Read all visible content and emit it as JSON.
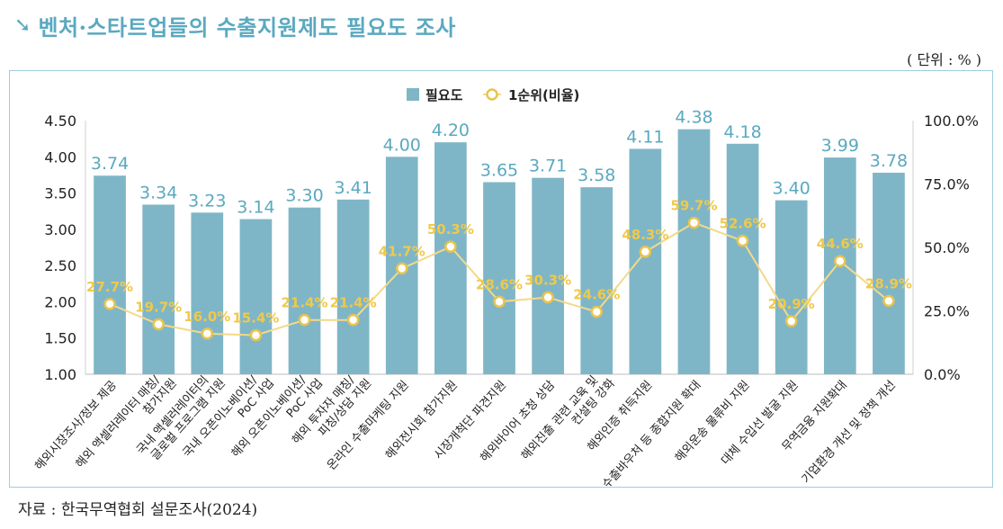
{
  "title": "벤처·스타트업들의 수출지원제도 필요도 조사",
  "title_icon": "arrow-down-right-icon",
  "unit_label": "( 단위 : % )",
  "source": "자료 : 한국무역협회 설문조사(2024)",
  "colors": {
    "bar": "#7fb6c7",
    "line": "#f3d98a",
    "marker_fill": "#ffffff",
    "value_text": "#5aa9c0",
    "pct_text": "#f0c94a",
    "title": "#5aa9c0"
  },
  "chart_data": {
    "type": "bar",
    "legend": [
      "필요도",
      "1순위(비율)"
    ],
    "categories": [
      "해외시장조사/정보 제공",
      "해외 액셀러레이터 매칭/참가지원",
      "국내 액셀러레이터의 글로벌 프로그램 지원",
      "국내 오픈이노베이션/PoC 사업",
      "해외 오픈이노베이션/PoC 사업",
      "해외 투자자 매칭/피칭/상담 지원",
      "온라인 수출마케팅 지원",
      "해외전시회 참가지원",
      "시장개척단 파견지원",
      "해외바이어 초청 상담",
      "해외진출 관련 교육 및 컨설팅 강화",
      "해외인증 취득지원",
      "수출바우처 등 종합지원 확대",
      "해외운송 물류비 지원",
      "대체 수입선 발굴 지원",
      "무역금융 지원확대",
      "기업환경 개선 및 정책 개선"
    ],
    "category_lines": [
      [
        "해외시장조사/정보 제공"
      ],
      [
        "해외 액셀러레이터 매칭/",
        "참가지원"
      ],
      [
        "국내 액셀러레이터의",
        "글로벌 프로그램 지원"
      ],
      [
        "국내 오픈이노베이션/",
        "PoC 사업"
      ],
      [
        "해외 오픈이노베이션/",
        "PoC 사업"
      ],
      [
        "해외 투자자 매칭/",
        "피칭/상담 지원"
      ],
      [
        "온라인 수출마케팅 지원"
      ],
      [
        "해외전시회 참가지원"
      ],
      [
        "시장개척단 파견지원"
      ],
      [
        "해외바이어 초청 상담"
      ],
      [
        "해외진출 관련 교육 및",
        "컨설팅 강화"
      ],
      [
        "해외인증 취득지원"
      ],
      [
        "수출바우처 등 종합지원 확대"
      ],
      [
        "해외운송 물류비 지원"
      ],
      [
        "대체 수입선 발굴 지원"
      ],
      [
        "무역금융 지원확대"
      ],
      [
        "기업환경 개선 및 정책 개선"
      ]
    ],
    "series": [
      {
        "name": "필요도",
        "type": "bar",
        "axis": "left",
        "values": [
          3.74,
          3.34,
          3.23,
          3.14,
          3.3,
          3.41,
          4.0,
          4.2,
          3.65,
          3.71,
          3.58,
          4.11,
          4.38,
          4.18,
          3.4,
          3.99,
          3.78
        ],
        "labels": [
          "3.74",
          "3.34",
          "3.23",
          "3.14",
          "3.30",
          "3.41",
          "4.00",
          "4.20",
          "3.65",
          "3.71",
          "3.58",
          "4.11",
          "4.38",
          "4.18",
          "3.40",
          "3.99",
          "3.78"
        ]
      },
      {
        "name": "1순위(비율)",
        "type": "line",
        "axis": "right",
        "values": [
          27.7,
          19.7,
          16.0,
          15.4,
          21.4,
          21.4,
          41.7,
          50.3,
          28.6,
          30.3,
          24.6,
          48.3,
          59.7,
          52.6,
          20.9,
          44.6,
          28.9
        ],
        "labels": [
          "27.7%",
          "19.7%",
          "16.0%",
          "15.4%",
          "21.4%",
          "21.4%",
          "41.7%",
          "50.3%",
          "28.6%",
          "30.3%",
          "24.6%",
          "48.3%",
          "59.7%",
          "52.6%",
          "20.9%",
          "44.6%",
          "28.9%"
        ]
      }
    ],
    "y_left": {
      "min": 1.0,
      "max": 4.5,
      "ticks": [
        "1.00",
        "1.50",
        "2.00",
        "2.50",
        "3.00",
        "3.50",
        "4.00",
        "4.50"
      ]
    },
    "y_right": {
      "min": 0,
      "max": 100,
      "ticks": [
        "0.0%",
        "25.0%",
        "50.0%",
        "75.0%",
        "100.0%"
      ]
    },
    "grid": false,
    "legend_position": "top-center"
  }
}
